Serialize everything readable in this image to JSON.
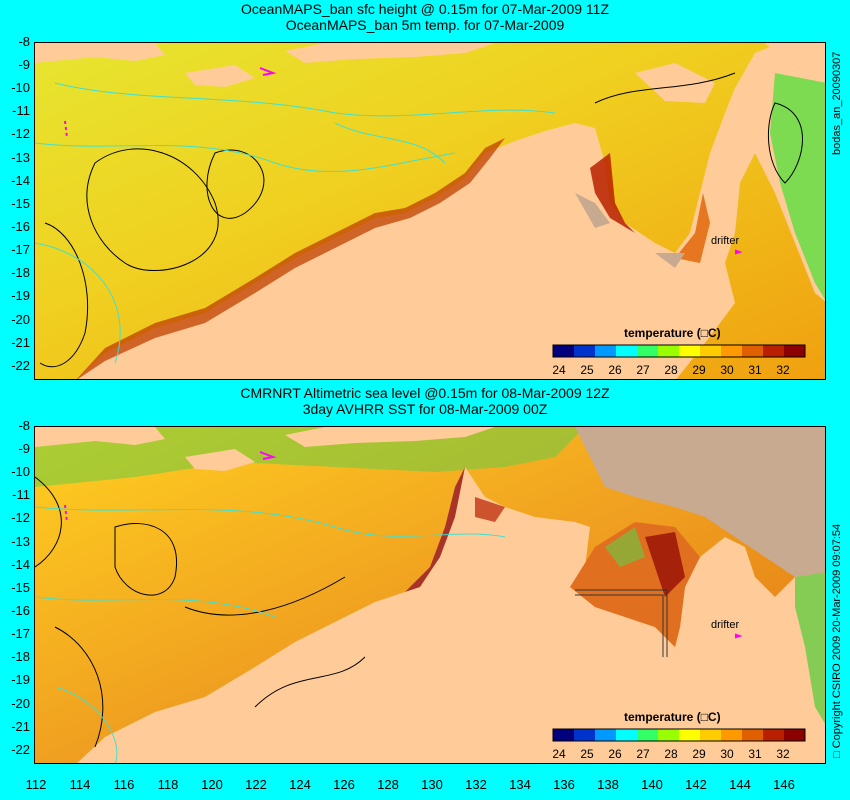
{
  "panels": [
    {
      "title_line1": "OceanMAPS_ban sfc height @ 0.15m for 07-Mar-2009 11Z",
      "title_line2": "OceanMAPS_ban 5m temp. for 07-Mar-2009",
      "legend_title": "temperature (□C)",
      "drifter_label": "drifter"
    },
    {
      "title_line1": "CMRNRT Altimetric sea level  @0.15m  for 08-Mar-2009 12Z",
      "title_line2": "3day AVHRR SST for 08-Mar-2009 00Z",
      "legend_title": "temperature (□C)",
      "drifter_label": "drifter"
    }
  ],
  "y_ticks": [
    "-8",
    "-9",
    "-10",
    "-11",
    "-12",
    "-13",
    "-14",
    "-15",
    "-16",
    "-17",
    "-18",
    "-19",
    "-20",
    "-21",
    "-22"
  ],
  "x_ticks": [
    "112",
    "114",
    "116",
    "118",
    "120",
    "122",
    "124",
    "126",
    "128",
    "130",
    "132",
    "134",
    "136",
    "138",
    "140",
    "142",
    "144",
    "146"
  ],
  "legend_ticks": [
    "24",
    "25",
    "26",
    "27",
    "28",
    "29",
    "30",
    "31",
    "32"
  ],
  "legend_colors": [
    "#00007f",
    "#0033cc",
    "#0099ff",
    "#00ffff",
    "#33ff66",
    "#99ff00",
    "#ffff00",
    "#ffcc00",
    "#ff9900",
    "#e06000",
    "#b82000",
    "#8b0000"
  ],
  "side_text_top": "bodas_an_20090307",
  "side_text_bottom": "□ Copyright CSIRO 2009  20-Mar-2009 09:07:54",
  "colors": {
    "background": "#00ffff",
    "land": "#ffcc99",
    "sst": "#f0c030",
    "no_data": "#c8aa90"
  }
}
